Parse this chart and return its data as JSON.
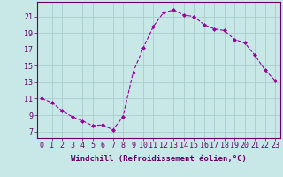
{
  "x": [
    0,
    1,
    2,
    3,
    4,
    5,
    6,
    7,
    8,
    9,
    10,
    11,
    12,
    13,
    14,
    15,
    16,
    17,
    18,
    19,
    20,
    21,
    22,
    23
  ],
  "y": [
    11,
    10.5,
    9.5,
    8.8,
    8.3,
    7.7,
    7.8,
    7.2,
    8.8,
    14.2,
    17.2,
    19.8,
    21.5,
    21.8,
    21.2,
    21.0,
    20.0,
    19.5,
    19.3,
    18.2,
    17.8,
    16.3,
    14.5,
    13.2
  ],
  "line_color": "#990099",
  "marker_color": "#990099",
  "bg_color": "#c8e8e8",
  "grid_color": "#aacccc",
  "xlabel": "Windchill (Refroidissement éolien,°C)",
  "ytick_vals": [
    7,
    9,
    11,
    13,
    15,
    17,
    19,
    21
  ],
  "xlim": [
    -0.5,
    23.5
  ],
  "ylim": [
    6.2,
    22.8
  ],
  "label_fontsize": 6.5,
  "tick_fontsize": 6,
  "axis_color": "#660066",
  "spine_color": "#660066"
}
